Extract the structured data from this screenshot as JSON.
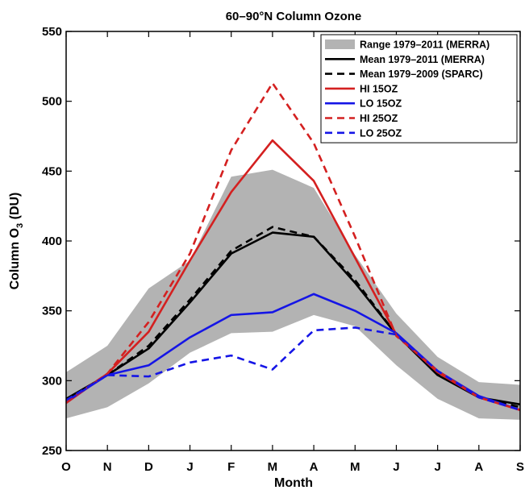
{
  "chart_data": {
    "type": "line",
    "title": "60–90°N Column Ozone",
    "xlabel": "Month",
    "ylabel": "Column O3 (DU)",
    "categories": [
      "O",
      "N",
      "D",
      "J",
      "F",
      "M",
      "A",
      "M",
      "J",
      "J",
      "A",
      "S"
    ],
    "ylim": [
      250,
      550
    ],
    "yticks": [
      250,
      300,
      350,
      400,
      450,
      500,
      550
    ],
    "legend_position": "top-right",
    "grid": false,
    "range_band": {
      "name": "Range 1979–2011 (MERRA)",
      "color": "#b3b3b3",
      "min": [
        273,
        281,
        298,
        320,
        334,
        335,
        347,
        339,
        311,
        287,
        273,
        272
      ],
      "max": [
        306,
        325,
        366,
        386,
        446,
        451,
        438,
        390,
        348,
        317,
        299,
        297
      ]
    },
    "series": [
      {
        "name": "Mean 1979–2011 (MERRA)",
        "color": "#000000",
        "dash": "solid",
        "values": [
          287,
          304,
          323,
          356,
          391,
          406,
          403,
          370,
          333,
          304,
          288,
          283
        ]
      },
      {
        "name": "Mean 1979–2009 (SPARC)",
        "color": "#000000",
        "dash": "dashed",
        "values": [
          286,
          304,
          325,
          358,
          393,
          410,
          403,
          372,
          333,
          305,
          288,
          281
        ]
      },
      {
        "name": "HI 15OZ",
        "color": "#d42020",
        "dash": "solid",
        "values": [
          284,
          305,
          335,
          386,
          435,
          472,
          443,
          388,
          333,
          306,
          288,
          279
        ]
      },
      {
        "name": "LO 15OZ",
        "color": "#1515e6",
        "dash": "solid",
        "values": [
          285,
          304,
          311,
          331,
          347,
          349,
          362,
          350,
          334,
          307,
          289,
          279
        ]
      },
      {
        "name": "HI 25OZ",
        "color": "#d42020",
        "dash": "dashed",
        "values": [
          285,
          305,
          342,
          391,
          465,
          513,
          470,
          403,
          332,
          307,
          288,
          279
        ]
      },
      {
        "name": "LO 25OZ",
        "color": "#1515e6",
        "dash": "dashed",
        "values": [
          286,
          304,
          303,
          313,
          318,
          308,
          336,
          338,
          333,
          307,
          288,
          279
        ]
      }
    ]
  }
}
